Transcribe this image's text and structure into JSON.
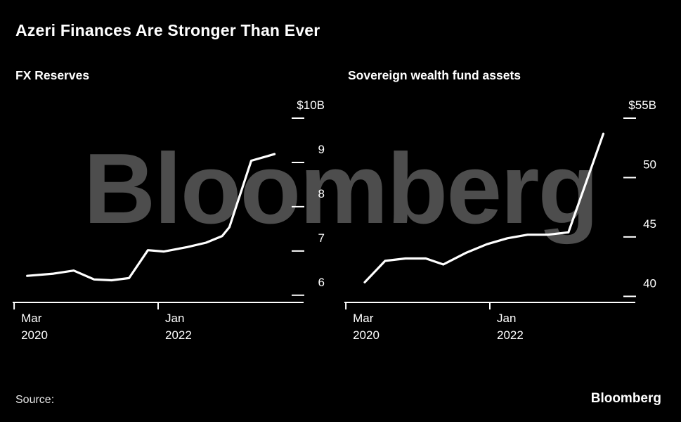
{
  "page": {
    "title": "Azeri Finances Are Stronger Than Ever",
    "source_label": "Source:",
    "watermark": "Bloomberg",
    "brand": "Bloomberg",
    "colors": {
      "background": "#000000",
      "text": "#ffffff",
      "line": "#ffffff",
      "watermark": "#4d4d4d"
    }
  },
  "chart_data": [
    {
      "type": "line",
      "title": "FX Reserves",
      "unit": "billion USD",
      "ylim": [
        5.6,
        10
      ],
      "yticks": [
        {
          "value": 10,
          "label": "$10B"
        },
        {
          "value": 9,
          "label": "9"
        },
        {
          "value": 8,
          "label": "8"
        },
        {
          "value": 7,
          "label": "7"
        },
        {
          "value": 6,
          "label": "6"
        }
      ],
      "xticks": [
        {
          "frac": 0.005,
          "lines": [
            "Mar",
            "2020"
          ]
        },
        {
          "frac": 0.5,
          "lines": [
            "Jan",
            "2022"
          ]
        }
      ],
      "points": [
        {
          "frac": 0.05,
          "value": 6.2
        },
        {
          "frac": 0.14,
          "value": 6.25
        },
        {
          "frac": 0.21,
          "value": 6.32
        },
        {
          "frac": 0.28,
          "value": 6.12
        },
        {
          "frac": 0.34,
          "value": 6.1
        },
        {
          "frac": 0.4,
          "value": 6.15
        },
        {
          "frac": 0.465,
          "value": 6.78
        },
        {
          "frac": 0.52,
          "value": 6.75
        },
        {
          "frac": 0.6,
          "value": 6.85
        },
        {
          "frac": 0.665,
          "value": 6.95
        },
        {
          "frac": 0.72,
          "value": 7.1
        },
        {
          "frac": 0.745,
          "value": 7.3
        },
        {
          "frac": 0.82,
          "value": 8.8
        },
        {
          "frac": 0.9,
          "value": 8.95
        }
      ]
    },
    {
      "type": "line",
      "title": "Sovereign wealth fund assets",
      "unit": "billion USD",
      "ylim": [
        38.6,
        55
      ],
      "yticks": [
        {
          "value": 55,
          "label": "$55B"
        },
        {
          "value": 50,
          "label": "50"
        },
        {
          "value": 45,
          "label": "45"
        },
        {
          "value": 40,
          "label": "40"
        }
      ],
      "xticks": [
        {
          "frac": 0.005,
          "lines": [
            "Mar",
            "2020"
          ]
        },
        {
          "frac": 0.5,
          "lines": [
            "Jan",
            "2022"
          ]
        }
      ],
      "points": [
        {
          "frac": 0.07,
          "value": 40.3
        },
        {
          "frac": 0.14,
          "value": 42.1
        },
        {
          "frac": 0.21,
          "value": 42.3
        },
        {
          "frac": 0.28,
          "value": 42.3
        },
        {
          "frac": 0.34,
          "value": 41.8
        },
        {
          "frac": 0.42,
          "value": 42.8
        },
        {
          "frac": 0.49,
          "value": 43.5
        },
        {
          "frac": 0.56,
          "value": 44.0
        },
        {
          "frac": 0.63,
          "value": 44.3
        },
        {
          "frac": 0.7,
          "value": 44.3
        },
        {
          "frac": 0.77,
          "value": 44.5
        },
        {
          "frac": 0.89,
          "value": 52.8
        }
      ]
    }
  ]
}
